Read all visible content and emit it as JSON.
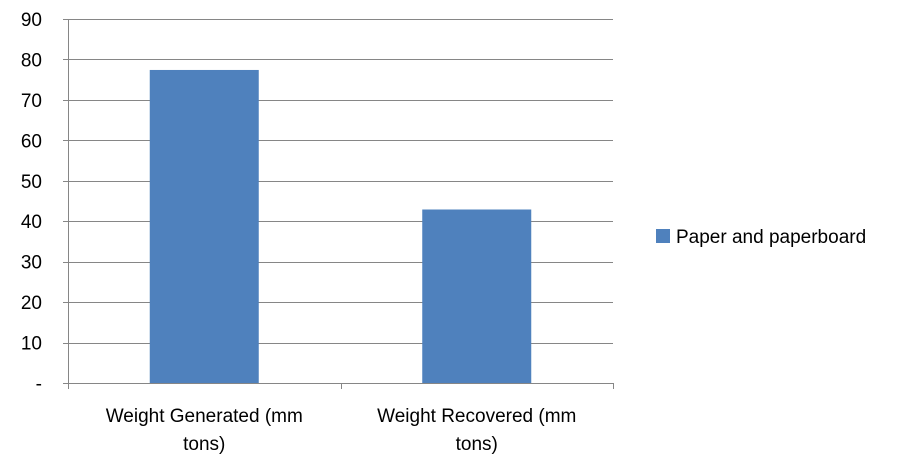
{
  "chart_data": {
    "type": "bar",
    "categories": [
      "Weight Generated (mm tons)",
      "Weight Recovered (mm tons)"
    ],
    "category_label_lines": [
      [
        "Weight Generated (mm",
        "tons)"
      ],
      [
        "Weight Recovered (mm",
        "tons)"
      ]
    ],
    "series": [
      {
        "name": "Paper and paperboard",
        "values": [
          77.4,
          42.9
        ],
        "color": "#4f81bd"
      }
    ],
    "ylim": [
      0,
      90
    ],
    "yticks": [
      0,
      10,
      20,
      30,
      40,
      50,
      60,
      70,
      80,
      90
    ],
    "ytick_labels": [
      "-",
      "10",
      "20",
      "30",
      "40",
      "50",
      "60",
      "70",
      "80",
      "90"
    ],
    "grid": true,
    "grid_color": "#868686",
    "legend_position": "right"
  }
}
